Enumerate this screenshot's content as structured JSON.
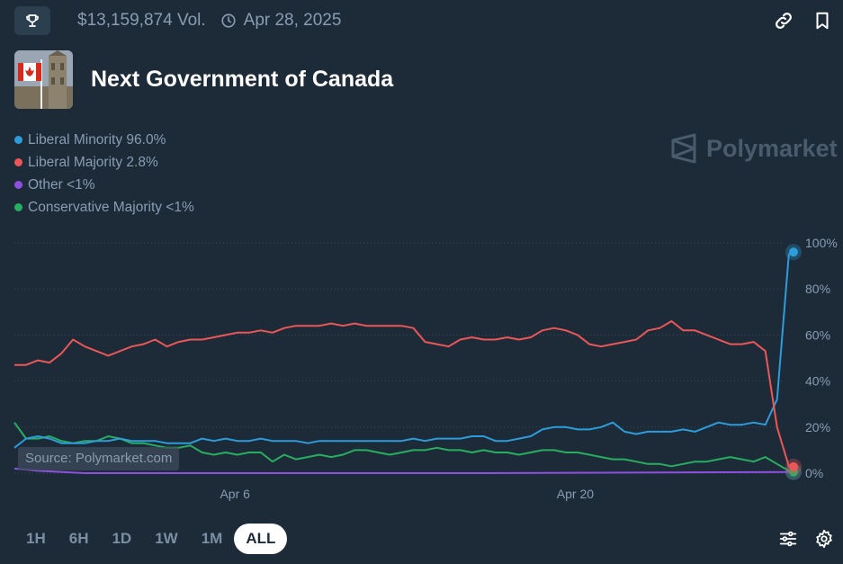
{
  "header": {
    "volume": "$13,159,874 Vol.",
    "date": "Apr 28, 2025",
    "title": "Next Government of Canada",
    "icons": [
      "trophy-icon",
      "clock-icon",
      "link-icon",
      "bookmark-icon"
    ]
  },
  "legend": [
    {
      "label": "Liberal Minority 96.0%",
      "color": "#2d9cdb"
    },
    {
      "label": "Liberal Majority 2.8%",
      "color": "#eb5757"
    },
    {
      "label": "Other <1%",
      "color": "#8f4fe0"
    },
    {
      "label": "Conservative Majority <1%",
      "color": "#27ae60"
    }
  ],
  "watermark": "Polymarket",
  "source": "Source: Polymarket.com",
  "range_buttons": [
    "1H",
    "6H",
    "1D",
    "1W",
    "1M",
    "ALL"
  ],
  "active_range": "ALL",
  "bottom_icons": [
    "sliders-icon",
    "gear-icon"
  ],
  "chart_data": {
    "type": "line",
    "x_tick_labels": [
      "Apr 6",
      "Apr 20"
    ],
    "y_tick_labels": [
      "100%",
      "80%",
      "60%",
      "40%",
      "20%",
      "0%"
    ],
    "ylim": [
      0,
      100
    ],
    "grid": "horizontal dotted",
    "series": [
      {
        "name": "Liberal Minority",
        "color": "#2d9cdb",
        "points": [
          [
            0,
            11
          ],
          [
            0.5,
            15
          ],
          [
            1,
            16
          ],
          [
            1.5,
            15
          ],
          [
            2,
            13
          ],
          [
            2.5,
            13
          ],
          [
            3,
            13
          ],
          [
            3.5,
            14
          ],
          [
            4,
            14
          ],
          [
            4.5,
            15
          ],
          [
            5,
            14
          ],
          [
            5.5,
            14
          ],
          [
            6,
            14
          ],
          [
            6.5,
            13
          ],
          [
            7,
            13
          ],
          [
            7.5,
            13
          ],
          [
            8,
            15
          ],
          [
            8.5,
            14
          ],
          [
            9,
            15
          ],
          [
            9.5,
            14
          ],
          [
            10,
            14
          ],
          [
            10.5,
            15
          ],
          [
            11,
            14
          ],
          [
            11.5,
            14
          ],
          [
            12,
            14
          ],
          [
            12.5,
            13
          ],
          [
            13,
            14
          ],
          [
            13.5,
            14
          ],
          [
            14,
            14
          ],
          [
            14.5,
            14
          ],
          [
            15,
            14
          ],
          [
            15.5,
            14
          ],
          [
            16,
            14
          ],
          [
            16.5,
            14
          ],
          [
            17,
            15
          ],
          [
            17.5,
            14
          ],
          [
            18,
            15
          ],
          [
            18.5,
            15
          ],
          [
            19,
            15
          ],
          [
            19.5,
            16
          ],
          [
            20,
            16
          ],
          [
            20.5,
            14
          ],
          [
            21,
            14
          ],
          [
            21.5,
            15
          ],
          [
            22,
            16
          ],
          [
            22.5,
            19
          ],
          [
            23,
            20
          ],
          [
            23.5,
            20
          ],
          [
            24,
            19
          ],
          [
            24.5,
            19
          ],
          [
            25,
            20
          ],
          [
            25.5,
            22
          ],
          [
            26,
            18
          ],
          [
            26.5,
            17
          ],
          [
            27,
            18
          ],
          [
            27.5,
            18
          ],
          [
            28,
            18
          ],
          [
            28.5,
            19
          ],
          [
            29,
            18
          ],
          [
            29.5,
            20
          ],
          [
            30,
            22
          ],
          [
            30.5,
            21
          ],
          [
            31,
            21
          ],
          [
            31.5,
            22
          ],
          [
            32,
            21
          ],
          [
            32.5,
            32
          ],
          [
            33,
            95
          ],
          [
            33.2,
            96
          ]
        ]
      },
      {
        "name": "Liberal Majority",
        "color": "#eb5757",
        "points": [
          [
            0,
            47
          ],
          [
            0.5,
            47
          ],
          [
            1,
            49
          ],
          [
            1.5,
            48
          ],
          [
            2,
            52
          ],
          [
            2.5,
            58
          ],
          [
            3,
            55
          ],
          [
            3.5,
            53
          ],
          [
            4,
            51
          ],
          [
            4.5,
            53
          ],
          [
            5,
            55
          ],
          [
            5.5,
            56
          ],
          [
            6,
            58
          ],
          [
            6.5,
            55
          ],
          [
            7,
            57
          ],
          [
            7.5,
            58
          ],
          [
            8,
            58
          ],
          [
            8.5,
            59
          ],
          [
            9,
            60
          ],
          [
            9.5,
            61
          ],
          [
            10,
            61
          ],
          [
            10.5,
            62
          ],
          [
            11,
            61
          ],
          [
            11.5,
            63
          ],
          [
            12,
            64
          ],
          [
            12.5,
            64
          ],
          [
            13,
            64
          ],
          [
            13.5,
            65
          ],
          [
            14,
            64
          ],
          [
            14.5,
            65
          ],
          [
            15,
            64
          ],
          [
            15.5,
            64
          ],
          [
            16,
            64
          ],
          [
            16.5,
            64
          ],
          [
            17,
            63
          ],
          [
            17.5,
            57
          ],
          [
            18,
            56
          ],
          [
            18.5,
            55
          ],
          [
            19,
            58
          ],
          [
            19.5,
            59
          ],
          [
            20,
            58
          ],
          [
            20.5,
            58
          ],
          [
            21,
            59
          ],
          [
            21.5,
            58
          ],
          [
            22,
            59
          ],
          [
            22.5,
            62
          ],
          [
            23,
            63
          ],
          [
            23.5,
            62
          ],
          [
            24,
            60
          ],
          [
            24.5,
            56
          ],
          [
            25,
            55
          ],
          [
            25.5,
            56
          ],
          [
            26,
            57
          ],
          [
            26.5,
            58
          ],
          [
            27,
            62
          ],
          [
            27.5,
            63
          ],
          [
            28,
            66
          ],
          [
            28.5,
            62
          ],
          [
            29,
            62
          ],
          [
            29.5,
            60
          ],
          [
            30,
            58
          ],
          [
            30.5,
            56
          ],
          [
            31,
            56
          ],
          [
            31.5,
            57
          ],
          [
            32,
            53
          ],
          [
            32.5,
            20
          ],
          [
            33,
            3
          ],
          [
            33.2,
            2.8
          ]
        ]
      },
      {
        "name": "Other",
        "color": "#8f4fe0",
        "points": [
          [
            0,
            2
          ],
          [
            1,
            1
          ],
          [
            3,
            0
          ],
          [
            10,
            0
          ],
          [
            20,
            0
          ],
          [
            33.2,
            0.5
          ]
        ]
      },
      {
        "name": "Conservative Majority",
        "color": "#27ae60",
        "points": [
          [
            0,
            22
          ],
          [
            0.5,
            15
          ],
          [
            1,
            15
          ],
          [
            1.5,
            16
          ],
          [
            2,
            14
          ],
          [
            2.5,
            13
          ],
          [
            3,
            14
          ],
          [
            3.5,
            14
          ],
          [
            4,
            16
          ],
          [
            4.5,
            15
          ],
          [
            5,
            13
          ],
          [
            5.5,
            13
          ],
          [
            6,
            12
          ],
          [
            6.5,
            11
          ],
          [
            7,
            11
          ],
          [
            7.5,
            12
          ],
          [
            8,
            9
          ],
          [
            8.5,
            8
          ],
          [
            9,
            9
          ],
          [
            9.5,
            8
          ],
          [
            10,
            9
          ],
          [
            10.5,
            9
          ],
          [
            11,
            5
          ],
          [
            11.5,
            8
          ],
          [
            12,
            6
          ],
          [
            12.5,
            7
          ],
          [
            13,
            8
          ],
          [
            13.5,
            7
          ],
          [
            14,
            8
          ],
          [
            14.5,
            10
          ],
          [
            15,
            10
          ],
          [
            15.5,
            9
          ],
          [
            16,
            8
          ],
          [
            16.5,
            9
          ],
          [
            17,
            10
          ],
          [
            17.5,
            10
          ],
          [
            18,
            11
          ],
          [
            18.5,
            10
          ],
          [
            19,
            10
          ],
          [
            19.5,
            9
          ],
          [
            20,
            10
          ],
          [
            20.5,
            9
          ],
          [
            21,
            9
          ],
          [
            21.5,
            8
          ],
          [
            22,
            9
          ],
          [
            22.5,
            10
          ],
          [
            23,
            10
          ],
          [
            23.5,
            9
          ],
          [
            24,
            9
          ],
          [
            24.5,
            8
          ],
          [
            25,
            7
          ],
          [
            25.5,
            6
          ],
          [
            26,
            6
          ],
          [
            26.5,
            5
          ],
          [
            27,
            4
          ],
          [
            27.5,
            4
          ],
          [
            28,
            3
          ],
          [
            28.5,
            4
          ],
          [
            29,
            5
          ],
          [
            29.5,
            5
          ],
          [
            30,
            6
          ],
          [
            30.5,
            7
          ],
          [
            31,
            6
          ],
          [
            31.5,
            5
          ],
          [
            32,
            7
          ],
          [
            32.5,
            4
          ],
          [
            33,
            1
          ],
          [
            33.2,
            0.5
          ]
        ]
      }
    ]
  }
}
